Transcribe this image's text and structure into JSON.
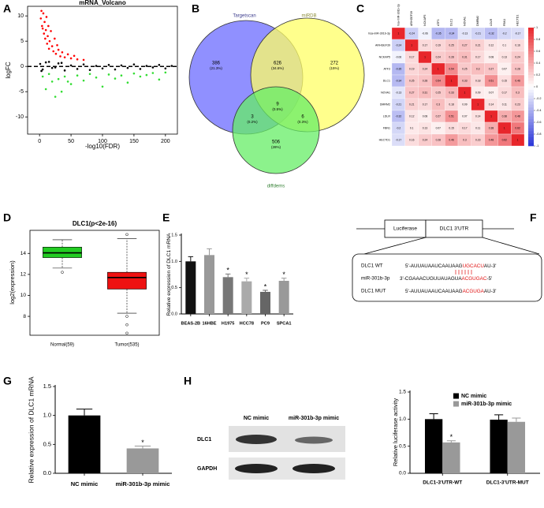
{
  "chart_data": [
    {
      "type": "scatter",
      "panel": "A",
      "title": "mRNA_Volcano",
      "x_label": "-log10(FDR)",
      "y_label": "logFC",
      "xlim": [
        -19,
        219
      ],
      "xticks": [
        0,
        50,
        100,
        150,
        200
      ],
      "ylim": [
        -13.4,
        11.9
      ],
      "yticks": [
        -10,
        -5,
        0,
        5,
        10
      ],
      "hline": 0,
      "series": [
        {
          "name": "up",
          "color": "#ff0000",
          "x": [
            2,
            3,
            4,
            5,
            6,
            7,
            8,
            9,
            10,
            11,
            12,
            13,
            14,
            15,
            16,
            18,
            20,
            22,
            24,
            26,
            28,
            30,
            33,
            36,
            40,
            45,
            50,
            55,
            60,
            70
          ],
          "values": [
            9.5,
            11,
            8,
            7.5,
            10.5,
            6.5,
            8.8,
            5.5,
            7.2,
            9.8,
            4.5,
            6,
            8,
            3.5,
            5,
            7,
            4,
            3,
            5.5,
            2.5,
            4.2,
            3.3,
            2,
            2.8,
            1.8,
            2.4,
            1.6,
            2.1,
            1.4,
            1.3
          ]
        },
        {
          "name": "not",
          "color": "#000000",
          "x": [
            1,
            5,
            10,
            20,
            30,
            40,
            50,
            60,
            70,
            80,
            90,
            100,
            110,
            120,
            130,
            140,
            150,
            160,
            170,
            180,
            190,
            200,
            210,
            3,
            15,
            25,
            35
          ],
          "values": [
            0.5,
            -0.6,
            0.8,
            -0.3,
            0.6,
            -0.8,
            0.2,
            -0.5,
            0.4,
            -0.7,
            0.1,
            -0.4,
            0.3,
            -0.6,
            0.2,
            -0.3,
            0.4,
            -0.5,
            0.1,
            -0.2,
            0.3,
            -0.4,
            0.1,
            -0.9,
            0.9,
            -0.2,
            0.7
          ]
        },
        {
          "name": "down",
          "color": "#33dd33",
          "x": [
            5,
            10,
            15,
            20,
            25,
            30,
            40,
            50,
            60,
            70,
            80,
            90,
            100,
            110,
            120,
            130,
            140,
            150,
            160,
            170,
            180,
            190,
            200,
            35,
            45
          ],
          "values": [
            -2,
            -4.5,
            -1.5,
            -3,
            -6,
            -2.5,
            -2,
            -3.5,
            -1.8,
            -2.8,
            -1.5,
            -2.2,
            -4,
            -1.6,
            -2.4,
            -1.8,
            -3.2,
            -1.4,
            -2,
            -1.7,
            -1.3,
            -2.6,
            -1.2,
            -5,
            -3
          ]
        }
      ]
    },
    {
      "type": "venn",
      "panel": "B",
      "sets": [
        {
          "name": "Targetscan",
          "color": "#6b6bff"
        },
        {
          "name": "miRDB",
          "color": "#ffff66"
        },
        {
          "name": "diffdems",
          "color": "#66ee66"
        }
      ],
      "values": [
        386,
        626,
        272,
        3,
        9,
        6,
        506
      ],
      "percent_labels": [
        "(21.3%)",
        "(34.6%)",
        "(15%)",
        "(0.2%)",
        "(0.5%)",
        "(0.3%)",
        "(28%)"
      ]
    },
    {
      "type": "heatmap",
      "panel": "C",
      "categories": [
        "hsa-miR-301b-3p",
        "ARHGEF39",
        "NCKAP5",
        "ATF3",
        "DLC1",
        "NOVA1",
        "DMRM2",
        "LDLR",
        "FBN1",
        "HECTD1"
      ],
      "matrix": [
        [
          1,
          -0.24,
          -0.06,
          -0.35,
          -0.34,
          -0.13,
          -0.21,
          -0.32,
          -0.2,
          -0.17
        ],
        [
          -0.24,
          1,
          0.17,
          0.19,
          0.25,
          0.27,
          0.21,
          0.12,
          0.1,
          0.16
        ],
        [
          -0.06,
          0.17,
          1,
          0.24,
          0.28,
          0.31,
          0.17,
          0.08,
          0.13,
          0.24
        ],
        [
          -0.35,
          0.19,
          0.24,
          1,
          0.54,
          0.25,
          0.3,
          0.27,
          0.07,
          0.28
        ],
        [
          -0.34,
          0.25,
          0.28,
          0.54,
          1,
          0.33,
          0.18,
          0.51,
          0.15,
          0.46
        ],
        [
          -0.13,
          0.27,
          0.31,
          0.25,
          0.33,
          1,
          0.09,
          0.07,
          0.17,
          0.3
        ],
        [
          -0.21,
          0.21,
          0.17,
          0.3,
          0.18,
          0.09,
          1,
          0.14,
          0.11,
          0.23
        ],
        [
          -0.32,
          0.12,
          0.08,
          0.27,
          0.51,
          0.07,
          0.14,
          1,
          0.38,
          0.48
        ],
        [
          -0.2,
          0.1,
          0.13,
          0.07,
          0.15,
          0.17,
          0.11,
          0.38,
          1,
          0.62
        ],
        [
          -0.17,
          0.16,
          0.24,
          0.28,
          0.46,
          0.3,
          0.23,
          0.48,
          0.62,
          1
        ]
      ],
      "zlim": [
        -1,
        1
      ],
      "zticks": [
        -1,
        -0.8,
        -0.6,
        -0.4,
        -0.2,
        0,
        0.2,
        0.4,
        0.6,
        0.8,
        1
      ],
      "colormap": [
        "#2a35d8",
        "#ffffff",
        "#e8262b"
      ]
    },
    {
      "type": "box",
      "panel": "D",
      "title": "DLC1(p<2e-16)",
      "y_label": "log2(expression)",
      "categories": [
        "Normal(59)",
        "Tumor(535)"
      ],
      "colors": [
        "#22cc22",
        "#ee1111"
      ],
      "ylim": [
        6.2,
        16.2
      ],
      "yticks": [
        8,
        10,
        12,
        14
      ],
      "boxes": [
        {
          "whislo": 12.6,
          "q1": 13.6,
          "med": 14.05,
          "q3": 14.6,
          "whishi": 15.3,
          "fliers": [
            12.2
          ]
        },
        {
          "whislo": 8.3,
          "q1": 10.6,
          "med": 11.7,
          "q3": 12.2,
          "whishi": 15.4,
          "fliers": [
            15.8,
            8,
            7.2,
            6.4
          ]
        }
      ]
    },
    {
      "type": "bar",
      "panel": "E",
      "y_label": "Relative expression of DLC1 mRNA",
      "categories": [
        "BEAS-2B",
        "16HBE",
        "H1975",
        "HCC78",
        "PC9",
        "SPCA1"
      ],
      "values": [
        1,
        1.12,
        0.7,
        0.62,
        0.42,
        0.63
      ],
      "errors": [
        0.09,
        0.12,
        0.06,
        0.06,
        0.03,
        0.05
      ],
      "significance": [
        null,
        null,
        "*",
        "*",
        "*",
        "*"
      ],
      "colors": [
        "#111111",
        "#999999",
        "#777777",
        "#aaaaaa",
        "#666666",
        "#999999"
      ],
      "ylim": [
        0,
        1.5
      ],
      "yticks": [
        {
          "value": 0,
          "label": "0.0"
        },
        0.5,
        {
          "value": 1,
          "label": "1.0"
        },
        1.5
      ]
    },
    {
      "type": "bar",
      "panel": "G",
      "y_label": "Relative expression of DLC1 mRNA",
      "categories": [
        "NC mimic",
        "miR-301b-3p mimic"
      ],
      "values": [
        1,
        0.43
      ],
      "errors": [
        0.11,
        0.04
      ],
      "significance": [
        null,
        "*"
      ],
      "colors": [
        "#000000",
        "#999999"
      ],
      "ylim": [
        0,
        1.5
      ],
      "yticks": [
        {
          "value": 0,
          "label": "0.0"
        },
        0.5,
        {
          "value": 1,
          "label": "1.0"
        },
        1.5
      ]
    },
    {
      "type": "bar",
      "y_label": "Relative luciferase activity",
      "categories": [
        "DLC1-3'UTR-WT",
        "DLC1-3'UTR-MUT"
      ],
      "series": [
        {
          "name": "NC mimic",
          "color": "#000000",
          "values": [
            1,
            0.99
          ],
          "errors": [
            0.1,
            0.09
          ]
        },
        {
          "name": "miR-301b-3p mimic",
          "color": "#999999",
          "values": [
            0.57,
            0.95
          ],
          "errors": [
            0.03,
            0.07
          ],
          "significance": [
            "*",
            null
          ]
        }
      ],
      "ylim": [
        0,
        1.5
      ],
      "yticks": [
        {
          "value": 0,
          "label": "0.0"
        },
        0.5,
        {
          "value": 1,
          "label": "1.0"
        },
        1.5
      ]
    }
  ],
  "diagram": {
    "panel": "F",
    "boxes": [
      "Luciferase",
      "DLC1 3'UTR"
    ],
    "rows": [
      {
        "label": "DLC1 WT",
        "sequence": [
          "5'-AUUAUAAUCAAUAAG",
          "UGCACU",
          "AU-3'"
        ]
      },
      {
        "label": "miR-301b-3p",
        "sequence": [
          "3'-CGAAACUGUUAUAGUA",
          "ACGUGAC",
          "-5'"
        ]
      },
      {
        "label": "DLC1 MUT",
        "sequence": [
          "5'-AUUAUAAUCAAUAAG",
          "ACGUGA",
          "AU-3'"
        ]
      }
    ]
  },
  "blot": {
    "panel": "H",
    "columns": [
      "NC mimic",
      "miR-301b-3p mimic"
    ],
    "rows": [
      "DLC1",
      "GAPDH"
    ]
  }
}
